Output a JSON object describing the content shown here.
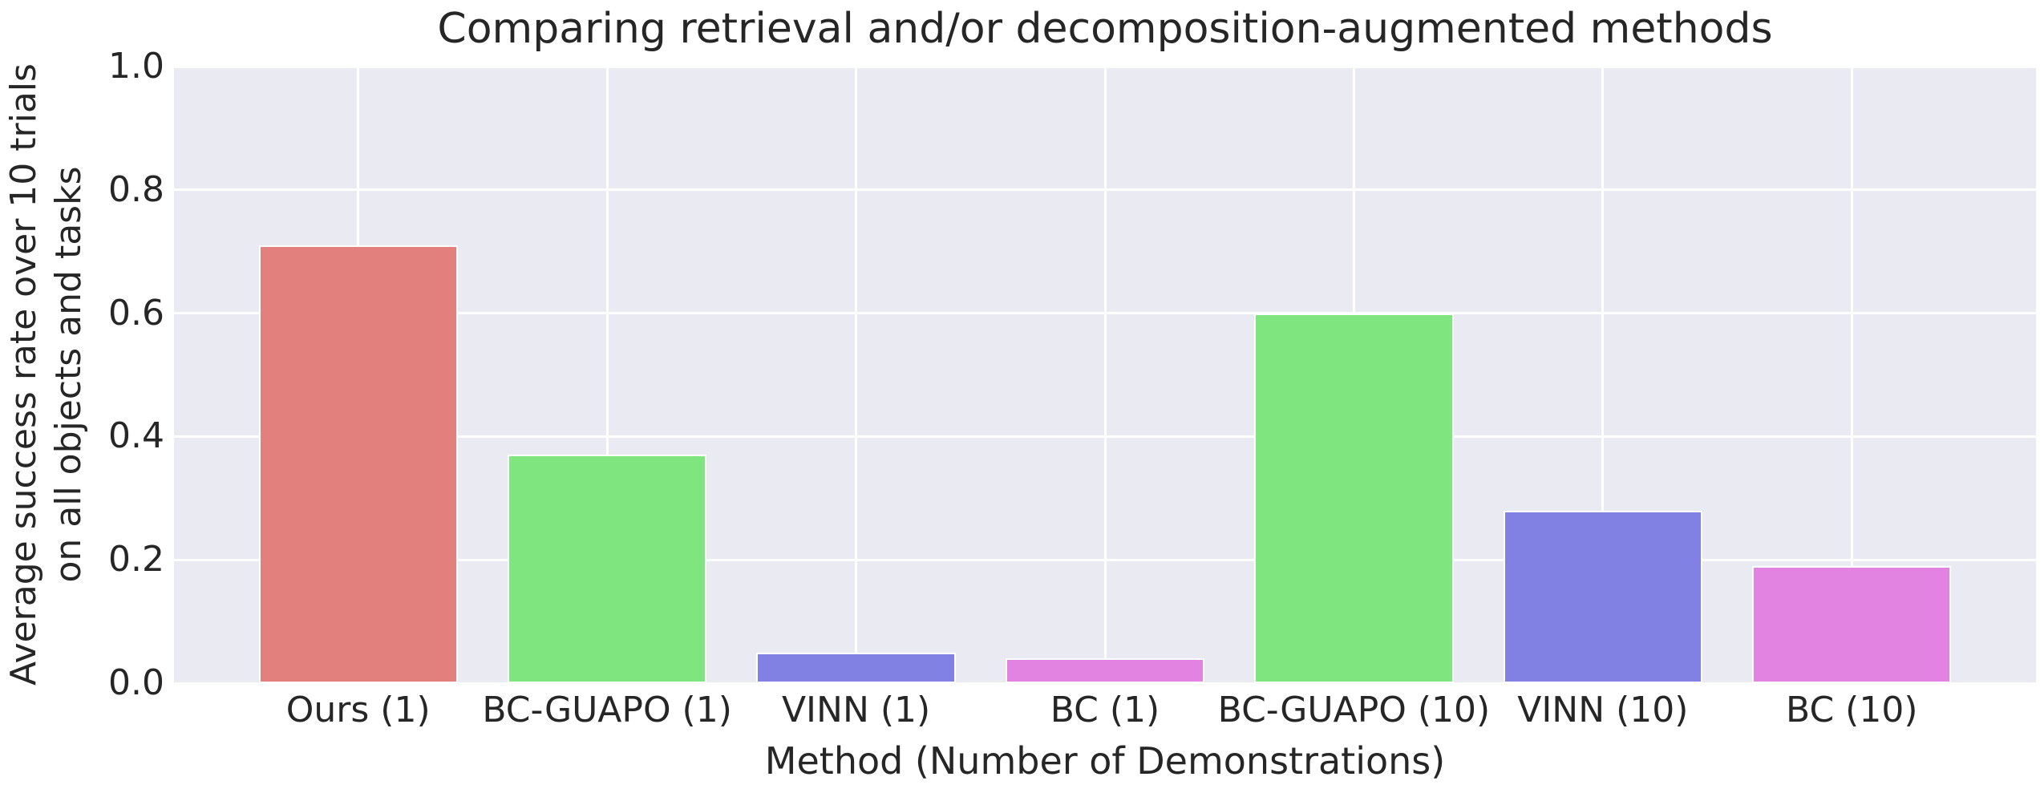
{
  "title": "Comparing retrieval and/or decomposition-augmented methods",
  "axes": {
    "ylabel_lines": [
      "Average success rate over 10 trials",
      "on all objects and tasks"
    ],
    "xlabel": "Method (Number of Demonstrations)"
  },
  "chart_data": {
    "type": "bar",
    "title": "Comparing retrieval and/or decomposition-augmented methods",
    "xlabel": "Method (Number of Demonstrations)",
    "ylabel": "Average success rate over 10 trials on all objects and tasks",
    "categories": [
      "Ours (1)",
      "BC-GUAPO (1)",
      "VINN (1)",
      "BC (1)",
      "BC-GUAPO (10)",
      "VINN (10)",
      "BC (10)"
    ],
    "values": [
      0.71,
      0.37,
      0.05,
      0.04,
      0.6,
      0.28,
      0.19
    ],
    "bar_colors": [
      "#e2807d",
      "#7ee57f",
      "#8181e4",
      "#e283e2",
      "#7ee57f",
      "#8181e4",
      "#e283e2"
    ],
    "ylim": [
      0.0,
      1.0
    ],
    "xlim": [
      -0.74,
      6.74
    ],
    "bar_width_units": 0.8,
    "ytick_labels": [
      "0.0",
      "0.2",
      "0.4",
      "0.6",
      "0.8",
      "1.0"
    ],
    "ytick_values": [
      0.0,
      0.2,
      0.4,
      0.6,
      0.8,
      1.0
    ],
    "grid": true,
    "legend": false,
    "plot_background": "#eaeaf2",
    "grid_color": "#ffffff",
    "text_color": "#262626"
  }
}
